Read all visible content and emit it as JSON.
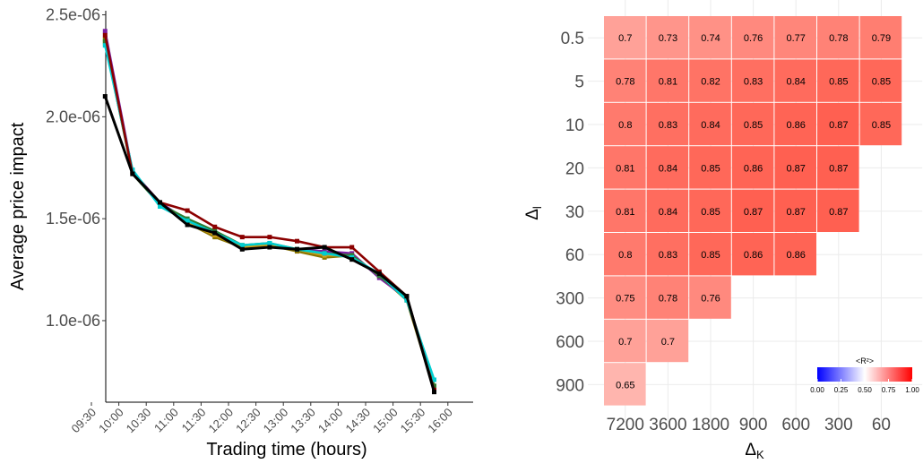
{
  "chart_data": [
    {
      "type": "line",
      "title": "",
      "xlabel": "Trading time (hours)",
      "ylabel": "Average price impact",
      "x_ticks": [
        "09:30",
        "10:00",
        "10:30",
        "11:00",
        "11:30",
        "12:00",
        "12:30",
        "13:00",
        "13:30",
        "14:00",
        "14:30",
        "15:00",
        "15:30",
        "16:00"
      ],
      "y_ticks": [
        "1.0e-06",
        "1.5e-06",
        "2.0e-06",
        "2.5e-06"
      ],
      "y_tick_values": [
        1e-06,
        1.5e-06,
        2e-06,
        2.5e-06
      ],
      "ylim": [
        6e-07,
        2.52e-06
      ],
      "x_points": [
        "09:45",
        "10:15",
        "10:45",
        "11:15",
        "11:45",
        "12:15",
        "12:45",
        "13:15",
        "13:45",
        "14:15",
        "14:45",
        "15:15",
        "15:45"
      ],
      "grid": false,
      "series": [
        {
          "color": "#8b7500",
          "values": [
            2.38e-06,
            1.73e-06,
            1.58e-06,
            1.48e-06,
            1.41e-06,
            1.36e-06,
            1.37e-06,
            1.34e-06,
            1.31e-06,
            1.32e-06,
            1.22e-06,
            1.1e-06,
            6.6e-07
          ]
        },
        {
          "color": "#7b1fa2",
          "values": [
            2.42e-06,
            1.73e-06,
            1.58e-06,
            1.49e-06,
            1.43e-06,
            1.36e-06,
            1.37e-06,
            1.35e-06,
            1.34e-06,
            1.33e-06,
            1.21e-06,
            1.11e-06,
            6.7e-07
          ]
        },
        {
          "color": "#d4a017",
          "values": [
            2.36e-06,
            1.73e-06,
            1.57e-06,
            1.48e-06,
            1.42e-06,
            1.36e-06,
            1.37e-06,
            1.35e-06,
            1.32e-06,
            1.32e-06,
            1.22e-06,
            1.11e-06,
            6.8e-07
          ]
        },
        {
          "color": "#2e7d32",
          "values": [
            2.37e-06,
            1.72e-06,
            1.57e-06,
            1.5e-06,
            1.44e-06,
            1.37e-06,
            1.38e-06,
            1.35e-06,
            1.33e-06,
            1.32e-06,
            1.22e-06,
            1.11e-06,
            6.8e-07
          ]
        },
        {
          "color": "#00ced1",
          "values": [
            2.35e-06,
            1.74e-06,
            1.56e-06,
            1.49e-06,
            1.43e-06,
            1.37e-06,
            1.38e-06,
            1.35e-06,
            1.33e-06,
            1.31e-06,
            1.23e-06,
            1.1e-06,
            7.1e-07
          ]
        },
        {
          "color": "#8b0000",
          "values": [
            2.4e-06,
            1.72e-06,
            1.58e-06,
            1.54e-06,
            1.46e-06,
            1.41e-06,
            1.41e-06,
            1.39e-06,
            1.36e-06,
            1.36e-06,
            1.24e-06,
            1.12e-06,
            6.6e-07
          ]
        },
        {
          "color": "#000000",
          "values": [
            2.1e-06,
            1.72e-06,
            1.58e-06,
            1.47e-06,
            1.43e-06,
            1.35e-06,
            1.36e-06,
            1.35e-06,
            1.36e-06,
            1.3e-06,
            1.23e-06,
            1.12e-06,
            6.5e-07
          ]
        }
      ]
    },
    {
      "type": "heatmap",
      "title": "",
      "xlabel_main": "Δ",
      "xlabel_sub": "K",
      "ylabel_main": "Δ",
      "ylabel_sub": "l",
      "x_categories": [
        "7200",
        "3600",
        "1800",
        "900",
        "600",
        "300",
        "60"
      ],
      "y_categories": [
        "0.5",
        "5",
        "10",
        "20",
        "30",
        "60",
        "300",
        "600",
        "900"
      ],
      "values": [
        [
          0.7,
          0.73,
          0.74,
          0.76,
          0.77,
          0.78,
          0.79
        ],
        [
          0.78,
          0.81,
          0.82,
          0.83,
          0.84,
          0.85,
          0.85
        ],
        [
          0.8,
          0.83,
          0.84,
          0.85,
          0.86,
          0.87,
          0.85
        ],
        [
          0.81,
          0.84,
          0.85,
          0.86,
          0.87,
          0.87,
          null
        ],
        [
          0.81,
          0.84,
          0.85,
          0.87,
          0.87,
          0.87,
          null
        ],
        [
          0.8,
          0.83,
          0.85,
          0.86,
          0.86,
          null,
          null
        ],
        [
          0.75,
          0.78,
          0.76,
          null,
          null,
          null,
          null
        ],
        [
          0.7,
          0.7,
          null,
          null,
          null,
          null,
          null
        ],
        [
          0.65,
          null,
          null,
          null,
          null,
          null,
          null
        ]
      ],
      "legend": {
        "title": "<R²>",
        "placement": "bottom-right",
        "colors": [
          "#0000ff",
          "#ffffff",
          "#ff0000"
        ],
        "range": [
          0.0,
          1.0
        ],
        "ticks": [
          "0.00",
          "0.25",
          "0.50",
          "0.75",
          "1.00"
        ]
      }
    }
  ]
}
